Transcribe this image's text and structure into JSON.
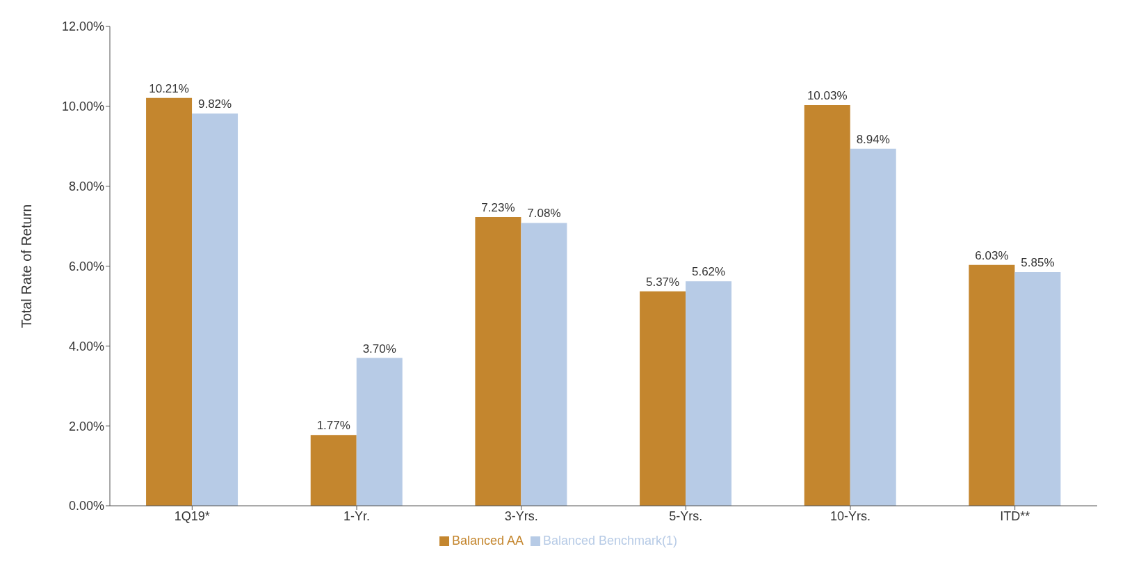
{
  "chart_data": {
    "type": "bar",
    "ylabel": "Total Rate of Return",
    "categories": [
      "1Q19*",
      "1-Yr.",
      "3-Yrs.",
      "5-Yrs.",
      "10-Yrs.",
      "ITD**"
    ],
    "series": [
      {
        "name": "Balanced AA",
        "color": "#c4862e",
        "values": [
          10.21,
          1.77,
          7.23,
          5.37,
          10.03,
          6.03
        ],
        "value_labels": [
          "10.21%",
          "1.77%",
          "7.23%",
          "5.37%",
          "10.03%",
          "6.03%"
        ]
      },
      {
        "name": "Balanced Benchmark(1)",
        "color": "#b7cbe6",
        "values": [
          9.82,
          3.7,
          7.08,
          5.62,
          8.94,
          5.85
        ],
        "value_labels": [
          "9.82%",
          "3.70%",
          "7.08%",
          "5.62%",
          "8.94%",
          "5.85%"
        ]
      }
    ],
    "ylim": [
      0,
      12
    ],
    "yticks": [
      {
        "value": 0,
        "label": "0.00%"
      },
      {
        "value": 2,
        "label": "2.00%"
      },
      {
        "value": 4,
        "label": "4.00%"
      },
      {
        "value": 6,
        "label": "6.00%"
      },
      {
        "value": 8,
        "label": "8.00%"
      },
      {
        "value": 10,
        "label": "10.00%"
      },
      {
        "value": 12,
        "label": "12.00%"
      }
    ],
    "legend": "bottom",
    "grid": false
  }
}
